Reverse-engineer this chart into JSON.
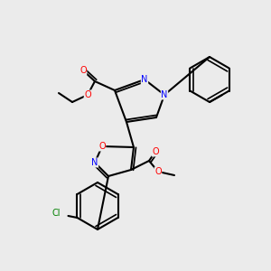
{
  "bg_color": "#ebebeb",
  "black": "#000000",
  "blue": "#0000ff",
  "red": "#ff0000",
  "green": "#008000",
  "lw": 1.5,
  "lw2": 1.2,
  "atoms": {
    "N_label": "N",
    "O_label": "O",
    "Cl_label": "Cl"
  }
}
